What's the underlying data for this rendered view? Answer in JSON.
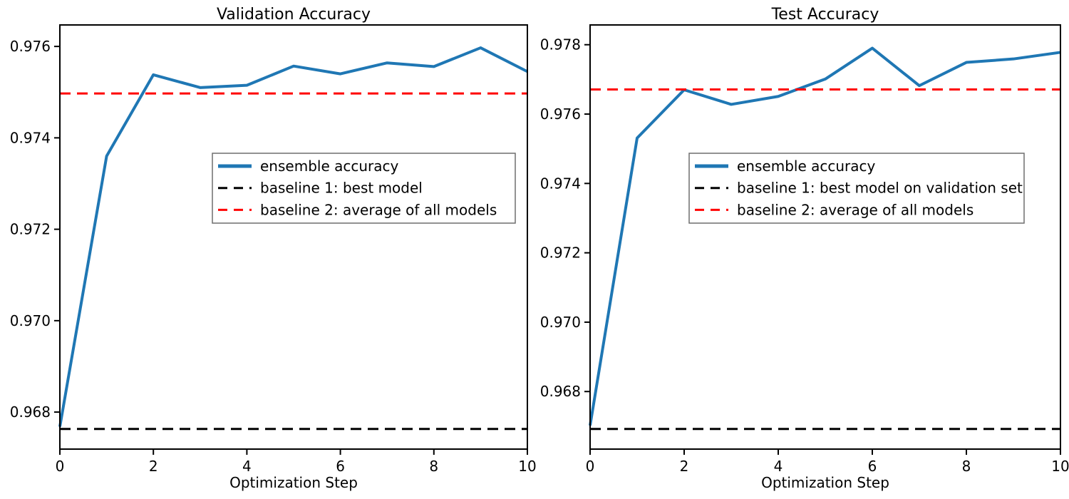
{
  "figure": {
    "background": "#ffffff",
    "text_color": "#000000",
    "accent_blue": "#1f77b4",
    "accent_red": "#ff0000",
    "accent_black": "#000000"
  },
  "chart_data": [
    {
      "type": "line",
      "title": "Validation Accuracy",
      "xlabel": "Optimization Step",
      "ylabel": "",
      "grid": false,
      "legend_loc": "center right",
      "x": [
        0,
        1,
        2,
        3,
        4,
        5,
        6,
        7,
        8,
        9,
        10
      ],
      "xlim": [
        0,
        10
      ],
      "ylim": [
        0.96719,
        0.97647
      ],
      "xticks": [
        0,
        2,
        4,
        6,
        8,
        10
      ],
      "xtick_labels": [
        "0",
        "2",
        "4",
        "6",
        "8",
        "10"
      ],
      "yticks": [
        0.976,
        0.974,
        0.972,
        0.97,
        0.968
      ],
      "ytick_labels": [
        "0.976",
        "0.974",
        "0.972",
        "0.970",
        "0.968"
      ],
      "series": [
        {
          "name": "ensemble accuracy",
          "style": "solid",
          "color": "#1f77b4",
          "values": [
            0.96768,
            0.9736,
            0.97538,
            0.9751,
            0.97515,
            0.97557,
            0.9754,
            0.97564,
            0.97556,
            0.97597,
            0.97545
          ]
        },
        {
          "name": "baseline 1: best model",
          "style": "dashed",
          "color": "#000000",
          "constant": 0.96763
        },
        {
          "name": "baseline 2: average of all models",
          "style": "dashed",
          "color": "#ff0000",
          "constant": 0.97497
        }
      ]
    },
    {
      "type": "line",
      "title": "Test Accuracy",
      "xlabel": "Optimization Step",
      "ylabel": "",
      "grid": false,
      "legend_loc": "center right",
      "x": [
        0,
        1,
        2,
        3,
        4,
        5,
        6,
        7,
        8,
        9,
        10
      ],
      "xlim": [
        0,
        10
      ],
      "ylim": [
        0.96634,
        0.97857
      ],
      "xticks": [
        0,
        2,
        4,
        6,
        8,
        10
      ],
      "xtick_labels": [
        "0",
        "2",
        "4",
        "6",
        "8",
        "10"
      ],
      "yticks": [
        0.978,
        0.976,
        0.974,
        0.972,
        0.97,
        0.968
      ],
      "ytick_labels": [
        "0.978",
        "0.976",
        "0.974",
        "0.972",
        "0.970",
        "0.968"
      ],
      "series": [
        {
          "name": "ensemble accuracy",
          "style": "solid",
          "color": "#1f77b4",
          "values": [
            0.96702,
            0.97531,
            0.9767,
            0.97628,
            0.97651,
            0.97701,
            0.9779,
            0.97682,
            0.97749,
            0.97759,
            0.97778
          ]
        },
        {
          "name": "baseline 1: best model on validation set",
          "style": "dashed",
          "color": "#000000",
          "constant": 0.96692
        },
        {
          "name": "baseline 2: average of all models",
          "style": "dashed",
          "color": "#ff0000",
          "constant": 0.97671
        }
      ]
    }
  ]
}
